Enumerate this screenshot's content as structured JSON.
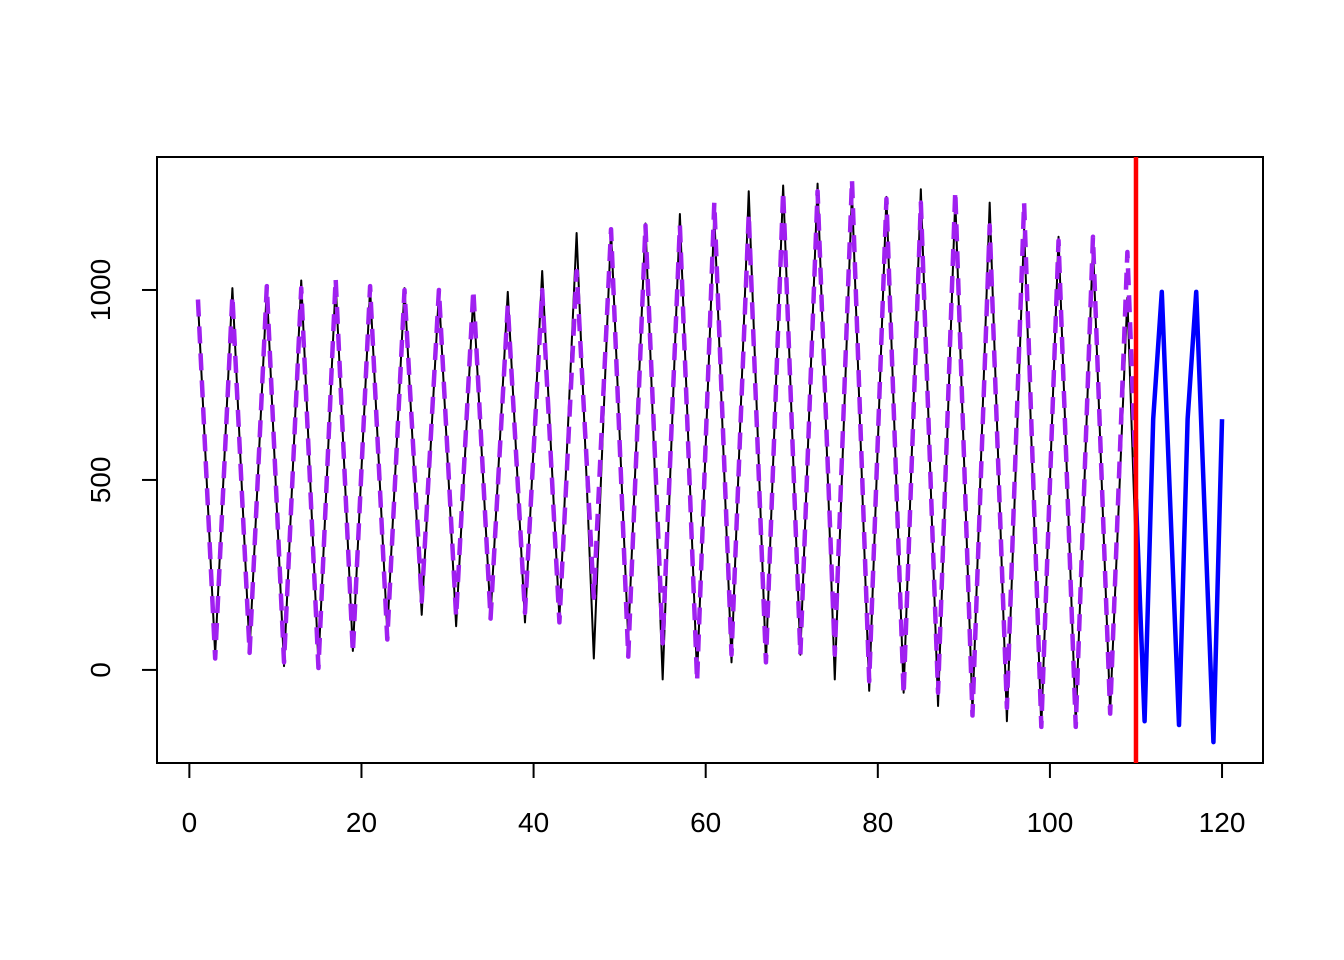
{
  "chart_data": {
    "type": "line",
    "xlim": [
      -3.76,
      124.76
    ],
    "ylim": [
      -245,
      1350
    ],
    "xticks": [
      0,
      20,
      40,
      60,
      80,
      100,
      120
    ],
    "yticks": [
      0,
      500,
      1000
    ],
    "vline": {
      "x": 110,
      "color": "#ff0000"
    },
    "series": [
      {
        "color": "#000000",
        "style": "solid",
        "x": [
          1,
          2,
          3,
          4,
          5,
          6,
          7,
          8,
          9,
          10,
          11,
          12,
          13,
          14,
          15,
          16,
          17,
          18,
          19,
          20,
          21,
          22,
          23,
          24,
          25,
          26,
          27,
          28,
          29,
          30,
          31,
          32,
          33,
          34,
          35,
          36,
          37,
          38,
          39,
          40,
          41,
          42,
          43,
          44,
          45,
          46,
          47,
          48,
          49,
          50,
          51,
          52,
          53,
          54,
          55,
          56,
          57,
          58,
          59,
          60,
          61,
          62,
          63,
          64,
          65,
          66,
          67,
          68,
          69,
          70,
          71,
          72,
          73,
          74,
          75,
          76,
          77,
          78,
          79,
          80,
          81,
          82,
          83,
          84,
          85,
          86,
          87,
          88,
          89,
          90,
          91,
          92,
          93,
          94,
          95,
          96,
          97,
          98,
          99,
          100,
          101,
          102,
          103,
          104,
          105,
          106,
          107,
          108,
          109,
          110
        ],
        "values": [
          970,
          505,
          40,
          522,
          1005,
          527,
          50,
          527,
          1005,
          507,
          10,
          517,
          1025,
          520,
          15,
          517,
          1020,
          535,
          50,
          527,
          1005,
          552,
          100,
          552,
          1005,
          575,
          145,
          570,
          995,
          555,
          115,
          550,
          985,
          562,
          140,
          567,
          995,
          560,
          125,
          587,
          1050,
          592,
          135,
          642,
          1150,
          590,
          30,
          595,
          1160,
          620,
          80,
          627,
          1175,
          575,
          -25,
          587,
          1200,
          590,
          -20,
          590,
          1200,
          610,
          20,
          640,
          1260,
          647,
          20,
          647,
          1275,
          657,
          40,
          660,
          1280,
          627,
          -25,
          617,
          1260,
          602,
          -55,
          595,
          1245,
          592,
          -60,
          602,
          1265,
          585,
          -95,
          572,
          1240,
          565,
          -110,
          560,
          1230,
          547,
          -135,
          512,
          1160,
          505,
          -150,
          495,
          1140,
          500,
          -140,
          490,
          1120,
          505,
          -110,
          435,
          980,
          300
        ]
      },
      {
        "color": "#a020f0",
        "style": "dashed",
        "x": [
          1,
          2,
          3,
          4,
          5,
          6,
          7,
          8,
          9,
          10,
          11,
          12,
          13,
          14,
          15,
          16,
          17,
          18,
          19,
          20,
          21,
          22,
          23,
          24,
          25,
          26,
          27,
          28,
          29,
          30,
          31,
          32,
          33,
          34,
          35,
          36,
          37,
          38,
          39,
          40,
          41,
          42,
          43,
          44,
          45,
          46,
          47,
          48,
          49,
          50,
          51,
          52,
          53,
          54,
          55,
          56,
          57,
          58,
          59,
          60,
          61,
          62,
          63,
          64,
          65,
          66,
          67,
          68,
          69,
          70,
          71,
          72,
          73,
          74,
          75,
          76,
          77,
          78,
          79,
          80,
          81,
          82,
          83,
          84,
          85,
          86,
          87,
          88,
          89,
          90,
          91,
          92,
          93,
          94,
          95,
          96,
          97,
          98,
          99,
          100,
          101,
          102,
          103,
          104,
          105,
          106,
          107,
          108,
          109,
          110
        ],
        "values": [
          975,
          502,
          30,
          507,
          985,
          515,
          45,
          527,
          1010,
          515,
          20,
          512,
          1005,
          505,
          5,
          517,
          1030,
          537,
          45,
          527,
          1010,
          545,
          80,
          540,
          1000,
          590,
          180,
          590,
          1000,
          570,
          140,
          570,
          1000,
          567,
          135,
          547,
          960,
          555,
          150,
          575,
          1000,
          562,
          125,
          587,
          1050,
          620,
          190,
          675,
          1160,
          597,
          35,
          602,
          1170,
          620,
          70,
          620,
          1170,
          570,
          -30,
          600,
          1230,
          635,
          40,
          620,
          1200,
          610,
          20,
          640,
          1260,
          650,
          40,
          650,
          1260,
          650,
          40,
          665,
          1290,
          630,
          -30,
          605,
          1240,
          587,
          -65,
          582,
          1230,
          585,
          -60,
          600,
          1260,
          570,
          -120,
          525,
          1170,
          535,
          -100,
          565,
          1230,
          540,
          -150,
          490,
          1130,
          490,
          -150,
          495,
          1140,
          512,
          -115,
          492,
          1100,
          500
        ]
      },
      {
        "color": "#0000ff",
        "style": "solid",
        "x": [
          110,
          111,
          112,
          113,
          114,
          115,
          116,
          117,
          118,
          119,
          120
        ],
        "values": [
          450,
          -135,
          660,
          995,
          425,
          -145,
          660,
          995,
          400,
          -190,
          660
        ]
      }
    ]
  }
}
